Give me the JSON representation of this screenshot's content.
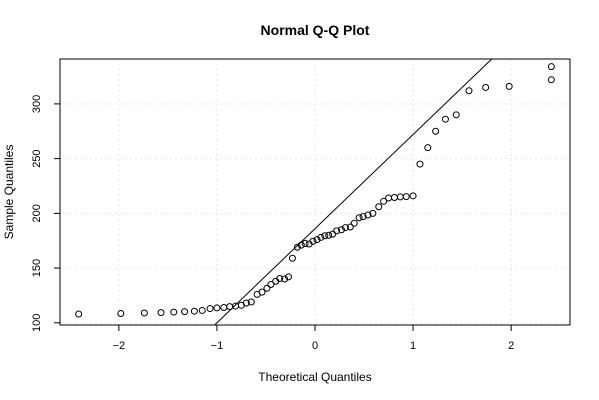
{
  "chart_data": {
    "type": "scatter",
    "title": "Normal Q-Q Plot",
    "xlabel": "Theoretical Quantiles",
    "ylabel": "Sample Quantiles",
    "xlim": [
      -2.6,
      2.6
    ],
    "ylim": [
      98,
      341
    ],
    "xticks": [
      -2,
      -1,
      0,
      1,
      2
    ],
    "xtick_labels": [
      "−2",
      "−1",
      "0",
      "1",
      "2"
    ],
    "yticks": [
      100,
      150,
      200,
      250,
      300
    ],
    "ytick_labels": [
      "100",
      "150",
      "200",
      "250",
      "300"
    ],
    "grid": true,
    "reference_line": {
      "intercept": 186,
      "slope": 86
    },
    "points": [
      [
        -2.41,
        108
      ],
      [
        -1.98,
        108.5
      ],
      [
        -1.74,
        109
      ],
      [
        -1.57,
        109.3
      ],
      [
        -1.44,
        109.8
      ],
      [
        -1.33,
        110.2
      ],
      [
        -1.23,
        110.6
      ],
      [
        -1.15,
        111.3
      ],
      [
        -1.07,
        113
      ],
      [
        -1.0,
        113.6
      ],
      [
        -0.93,
        114
      ],
      [
        -0.87,
        114.8
      ],
      [
        -0.81,
        115.3
      ],
      [
        -0.75,
        116
      ],
      [
        -0.7,
        118
      ],
      [
        -0.65,
        119
      ],
      [
        -0.59,
        126
      ],
      [
        -0.54,
        128
      ],
      [
        -0.49,
        131.6
      ],
      [
        -0.45,
        135
      ],
      [
        -0.4,
        138
      ],
      [
        -0.36,
        140.5
      ],
      [
        -0.31,
        140
      ],
      [
        -0.27,
        142
      ],
      [
        -0.23,
        159
      ],
      [
        -0.18,
        169
      ],
      [
        -0.14,
        171
      ],
      [
        -0.1,
        172.5
      ],
      [
        -0.06,
        172
      ],
      [
        -0.02,
        174.5
      ],
      [
        0.02,
        176
      ],
      [
        0.06,
        178
      ],
      [
        0.1,
        179.5
      ],
      [
        0.14,
        180
      ],
      [
        0.18,
        181
      ],
      [
        0.22,
        184
      ],
      [
        0.27,
        185
      ],
      [
        0.31,
        187
      ],
      [
        0.36,
        187.5
      ],
      [
        0.4,
        191
      ],
      [
        0.45,
        196
      ],
      [
        0.49,
        197
      ],
      [
        0.54,
        198.5
      ],
      [
        0.59,
        200
      ],
      [
        0.65,
        206
      ],
      [
        0.7,
        211
      ],
      [
        0.75,
        214
      ],
      [
        0.81,
        214.5
      ],
      [
        0.87,
        215
      ],
      [
        0.93,
        215.3
      ],
      [
        1.0,
        216
      ],
      [
        1.07,
        245
      ],
      [
        1.15,
        260
      ],
      [
        1.23,
        275
      ],
      [
        1.33,
        286
      ],
      [
        1.44,
        290
      ],
      [
        1.57,
        312
      ],
      [
        1.74,
        315
      ],
      [
        1.98,
        316
      ],
      [
        2.41,
        322
      ],
      [
        2.41,
        334
      ]
    ]
  }
}
